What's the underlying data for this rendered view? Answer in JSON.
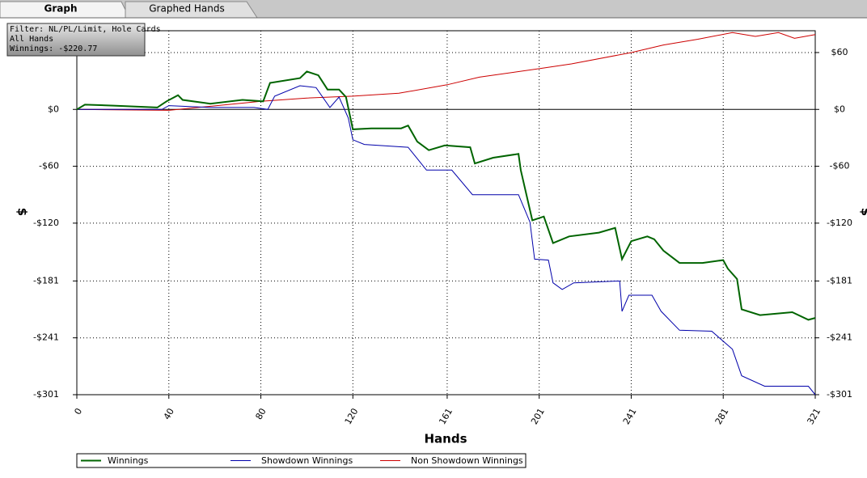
{
  "tabs": [
    "Graph",
    "Graphed Hands"
  ],
  "info": [
    "Filter: NL/PL/Limit, Hole Cards",
    "All Hands",
    "Winnings: -$220.77"
  ],
  "chart_data": {
    "type": "line",
    "x_label": "Hands",
    "y_label": "$",
    "xlim": [
      0,
      321
    ],
    "xticks": [
      0,
      40,
      80,
      120,
      161,
      201,
      241,
      281,
      321
    ],
    "ylim": [
      -301,
      83
    ],
    "yticks": [
      {
        "value": 60,
        "label": "$60"
      },
      {
        "value": 0,
        "label": "$0"
      },
      {
        "value": -60,
        "label": "-$60"
      },
      {
        "value": -120,
        "label": "-$120"
      },
      {
        "value": -181,
        "label": "-$181"
      },
      {
        "value": -241,
        "label": "-$241"
      },
      {
        "value": -301,
        "label": "-$301"
      }
    ],
    "grid": true,
    "series": [
      {
        "name": "Winnings",
        "color": "#006400",
        "x": [
          0,
          3.5,
          16,
          35,
          39,
          44,
          46,
          58,
          72,
          81,
          84,
          97,
          100,
          105,
          109,
          114,
          117,
          120,
          128,
          141,
          144,
          148,
          153,
          160,
          171,
          173,
          181,
          192,
          193,
          198,
          203,
          207,
          214,
          227,
          234,
          237,
          241,
          248,
          251,
          255,
          262,
          272,
          281,
          283,
          287,
          289,
          297,
          311,
          318,
          321
        ],
        "values": [
          0,
          5,
          4,
          2,
          8.5,
          15,
          10,
          6,
          10,
          8.5,
          28,
          33,
          40,
          36,
          21,
          21,
          13,
          -21,
          -20,
          -20,
          -17,
          -34,
          -43,
          -38,
          -40,
          -57,
          -51,
          -47,
          -64,
          -117,
          -113,
          -141,
          -134,
          -130,
          -125,
          -158,
          -139,
          -134,
          -137,
          -149,
          -162,
          -162,
          -159,
          -168,
          -179,
          -211,
          -217,
          -214,
          -222,
          -220
        ]
      },
      {
        "name": "Showdown Winnings",
        "color": "#0000aa",
        "x": [
          0,
          37,
          40,
          58,
          77,
          83,
          86,
          97,
          104,
          110,
          114,
          118,
          120,
          125,
          144,
          149,
          152,
          163,
          172,
          192,
          197,
          199,
          205,
          207,
          211,
          216,
          236,
          237,
          240,
          250,
          254,
          262,
          276,
          285,
          289,
          299,
          318,
          321
        ],
        "values": [
          0,
          0,
          4,
          2,
          2,
          0,
          14,
          25,
          23,
          2,
          13,
          -9,
          -32,
          -37,
          -40,
          -55,
          -64,
          -64,
          -90,
          -90,
          -119,
          -158,
          -159,
          -183,
          -190,
          -183,
          -181,
          -213,
          -196,
          -196,
          -213,
          -233,
          -234,
          -253,
          -281,
          -292,
          -292,
          -301
        ]
      },
      {
        "name": "Non Showdown Winnings",
        "color": "#cc0000",
        "x": [
          0,
          40,
          80,
          100,
          120,
          140,
          161,
          175,
          201,
          215,
          241,
          255,
          270,
          285,
          295,
          305,
          312,
          321
        ],
        "values": [
          0,
          -1,
          8.5,
          12,
          14,
          17,
          26,
          34,
          43,
          48,
          60,
          68,
          74,
          81,
          77,
          81,
          75,
          79
        ]
      }
    ]
  }
}
